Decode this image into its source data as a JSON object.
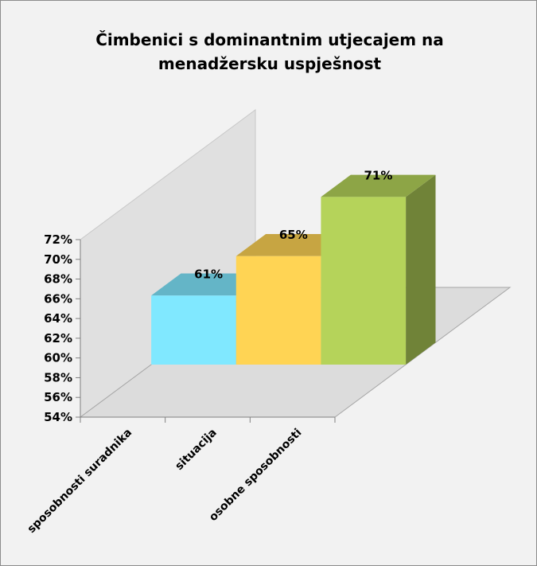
{
  "chart_data": {
    "type": "bar3d",
    "title": "Čimbenici s dominantnim utjecajem na menadžersku uspješnost",
    "categories": [
      "sposobnosti suradnika",
      "situacija",
      "osobne sposobnosti"
    ],
    "values": [
      61,
      65,
      71
    ],
    "value_labels": [
      "61%",
      "65%",
      "71%"
    ],
    "colors": [
      "#80e8ff",
      "#ffd454",
      "#b5d35a"
    ],
    "ylim": [
      54,
      72
    ],
    "yticks": [
      {
        "value": 54,
        "label": "54%"
      },
      {
        "value": 56,
        "label": "56%"
      },
      {
        "value": 58,
        "label": "58%"
      },
      {
        "value": 60,
        "label": "60%"
      },
      {
        "value": 62,
        "label": "62%"
      },
      {
        "value": 64,
        "label": "64%"
      },
      {
        "value": 66,
        "label": "66%"
      },
      {
        "value": 68,
        "label": "68%"
      },
      {
        "value": 70,
        "label": "70%"
      },
      {
        "value": 72,
        "label": "72%"
      }
    ]
  }
}
